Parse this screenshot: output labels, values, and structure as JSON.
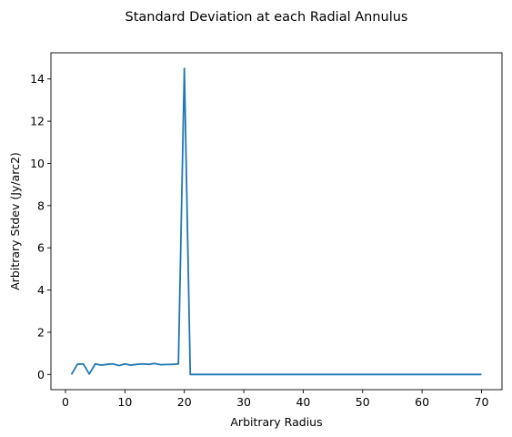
{
  "chart_data": {
    "type": "line",
    "title": "Standard Deviation at each Radial Annulus",
    "xlabel": "Arbitrary Radius",
    "ylabel": "Arbitrary Stdev (Jy/arc2)",
    "xlim": [
      -2.45,
      73.45
    ],
    "ylim": [
      -0.72,
      15.24
    ],
    "xticks": [
      0,
      10,
      20,
      30,
      40,
      50,
      60,
      70
    ],
    "yticks": [
      0,
      2,
      4,
      6,
      8,
      10,
      12,
      14
    ],
    "grid": false,
    "colors": {
      "series": "#1f77b4",
      "axis": "#000000"
    },
    "x": [
      1,
      2,
      3,
      4,
      5,
      6,
      7,
      8,
      9,
      10,
      11,
      12,
      13,
      14,
      15,
      16,
      17,
      18,
      19,
      20,
      21,
      22,
      23,
      24,
      25,
      26,
      27,
      28,
      29,
      30,
      31,
      32,
      33,
      34,
      35,
      36,
      37,
      38,
      39,
      40,
      41,
      42,
      43,
      44,
      45,
      46,
      47,
      48,
      49,
      50,
      51,
      52,
      53,
      54,
      55,
      56,
      57,
      58,
      59,
      60,
      61,
      62,
      63,
      64,
      65,
      66,
      67,
      68,
      69,
      70
    ],
    "values": [
      0.0,
      0.48,
      0.5,
      0.02,
      0.5,
      0.44,
      0.48,
      0.5,
      0.42,
      0.5,
      0.44,
      0.48,
      0.5,
      0.48,
      0.52,
      0.46,
      0.47,
      0.48,
      0.5,
      14.5,
      0.0,
      0.0,
      0.0,
      0.0,
      0.0,
      0.0,
      0.0,
      0.0,
      0.0,
      0.0,
      0.0,
      0.0,
      0.0,
      0.0,
      0.0,
      0.0,
      0.0,
      0.0,
      0.0,
      0.0,
      0.0,
      0.0,
      0.0,
      0.0,
      0.0,
      0.0,
      0.0,
      0.0,
      0.0,
      0.0,
      0.0,
      0.0,
      0.0,
      0.0,
      0.0,
      0.0,
      0.0,
      0.0,
      0.0,
      0.0,
      0.0,
      0.0,
      0.0,
      0.0,
      0.0,
      0.0,
      0.0,
      0.0,
      0.0,
      0.0
    ]
  }
}
